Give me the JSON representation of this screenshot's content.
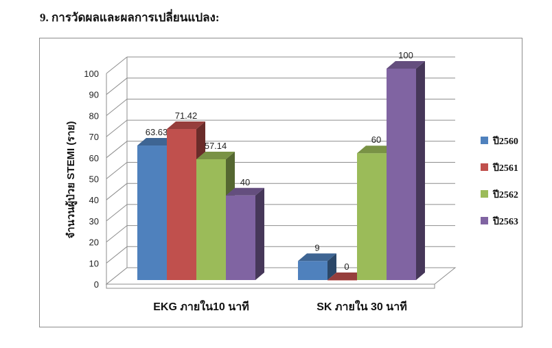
{
  "heading": "9. การวัดผลและผลการเปลี่ยนแปลง:",
  "chart_data": {
    "type": "bar",
    "style": "3d-clustered-column",
    "ylabel": "จำนวนผู้ป่วย STEMI (ราย)",
    "xlabel": "",
    "ylim": [
      0,
      100
    ],
    "yticks": [
      "0",
      "10",
      "20",
      "30",
      "40",
      "50",
      "60",
      "70",
      "80",
      "90",
      "100"
    ],
    "grid": true,
    "legend_position": "right",
    "categories": [
      "EKG ภายใน10 นาที",
      "SK ภายใน 30 นาที"
    ],
    "series": [
      {
        "name": "ปี2560",
        "color": "#4f81bd",
        "values": [
          63.63,
          9
        ],
        "labels": [
          "63.63",
          "9"
        ]
      },
      {
        "name": "ปี2561",
        "color": "#c0504d",
        "values": [
          71.42,
          0
        ],
        "labels": [
          "71.42",
          "0"
        ]
      },
      {
        "name": "ปี2562",
        "color": "#9bbb59",
        "values": [
          57.14,
          60
        ],
        "labels": [
          "57.14",
          "60"
        ]
      },
      {
        "name": "ปี2563",
        "color": "#8064a2",
        "values": [
          40,
          100
        ],
        "labels": [
          "40",
          "100"
        ]
      }
    ]
  }
}
